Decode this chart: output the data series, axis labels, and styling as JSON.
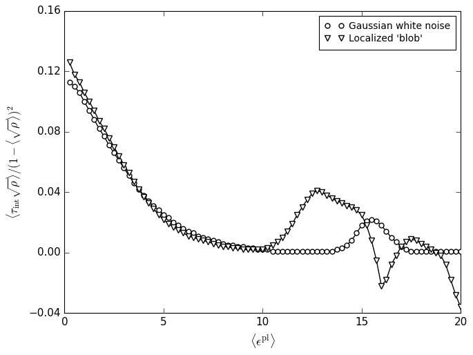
{
  "xlabel": "$\\langle \\epsilon^{\\mathrm{pl}} \\rangle$",
  "ylabel": "$\\langle \\tau_{\\mathrm{int}} \\sqrt{\\rho} \\rangle / (1 - \\langle \\sqrt{\\rho} \\rangle)^2$",
  "xlim": [
    0,
    20
  ],
  "ylim": [
    -0.04,
    0.16
  ],
  "xticks": [
    0,
    5,
    10,
    15,
    20
  ],
  "yticks": [
    -0.04,
    0.0,
    0.04,
    0.08,
    0.12,
    0.16
  ],
  "legend_labels": [
    "Gaussian white noise",
    "Localized 'blob'"
  ],
  "marker_size_circle": 5,
  "marker_size_triangle": 6,
  "gaussian_x": [
    0.25,
    0.5,
    0.75,
    1.0,
    1.25,
    1.5,
    1.75,
    2.0,
    2.25,
    2.5,
    2.75,
    3.0,
    3.25,
    3.5,
    3.75,
    4.0,
    4.25,
    4.5,
    4.75,
    5.0,
    5.25,
    5.5,
    5.75,
    6.0,
    6.25,
    6.5,
    6.75,
    7.0,
    7.25,
    7.5,
    7.75,
    8.0,
    8.25,
    8.5,
    8.75,
    9.0,
    9.25,
    9.5,
    9.75,
    10.0,
    10.25,
    10.5,
    10.75,
    11.0,
    11.25,
    11.5,
    11.75,
    12.0,
    12.25,
    12.5,
    12.75,
    13.0,
    13.25,
    13.5,
    13.75,
    14.0,
    14.25,
    14.5,
    14.75,
    15.0,
    15.25,
    15.5,
    15.75,
    16.0,
    16.25,
    16.5,
    16.75,
    17.0,
    17.25,
    17.5,
    17.75,
    18.0,
    18.25,
    18.5,
    18.75,
    19.0,
    19.25,
    19.5,
    19.75,
    20.0
  ],
  "gaussian_y": [
    0.113,
    0.11,
    0.106,
    0.1,
    0.094,
    0.088,
    0.082,
    0.077,
    0.071,
    0.066,
    0.061,
    0.056,
    0.051,
    0.046,
    0.042,
    0.038,
    0.034,
    0.031,
    0.028,
    0.025,
    0.023,
    0.02,
    0.018,
    0.016,
    0.014,
    0.013,
    0.011,
    0.01,
    0.009,
    0.008,
    0.007,
    0.006,
    0.005,
    0.005,
    0.004,
    0.004,
    0.003,
    0.003,
    0.002,
    0.002,
    0.002,
    0.001,
    0.001,
    0.001,
    0.001,
    0.001,
    0.001,
    0.001,
    0.001,
    0.001,
    0.001,
    0.001,
    0.001,
    0.001,
    0.002,
    0.003,
    0.005,
    0.008,
    0.013,
    0.018,
    0.021,
    0.022,
    0.021,
    0.018,
    0.014,
    0.01,
    0.007,
    0.004,
    0.002,
    0.001,
    0.001,
    0.001,
    0.001,
    0.001,
    0.001,
    0.001,
    0.001,
    0.001,
    0.001,
    0.001
  ],
  "blob_x": [
    0.25,
    0.5,
    0.75,
    1.0,
    1.25,
    1.5,
    1.75,
    2.0,
    2.25,
    2.5,
    2.75,
    3.0,
    3.25,
    3.5,
    3.75,
    4.0,
    4.25,
    4.5,
    4.75,
    5.0,
    5.25,
    5.5,
    5.75,
    6.0,
    6.25,
    6.5,
    6.75,
    7.0,
    7.25,
    7.5,
    7.75,
    8.0,
    8.25,
    8.5,
    8.75,
    9.0,
    9.25,
    9.5,
    9.75,
    10.0,
    10.25,
    10.5,
    10.75,
    11.0,
    11.25,
    11.5,
    11.75,
    12.0,
    12.25,
    12.5,
    12.75,
    13.0,
    13.25,
    13.5,
    13.75,
    14.0,
    14.25,
    14.5,
    14.75,
    15.0,
    15.25,
    15.5,
    15.75,
    16.0,
    16.25,
    16.5,
    16.75,
    17.0,
    17.25,
    17.5,
    17.75,
    18.0,
    18.25,
    18.5,
    18.75,
    19.0,
    19.25,
    19.5,
    19.75,
    20.0
  ],
  "blob_y": [
    0.126,
    0.118,
    0.113,
    0.106,
    0.1,
    0.094,
    0.087,
    0.082,
    0.076,
    0.07,
    0.064,
    0.058,
    0.053,
    0.047,
    0.042,
    0.037,
    0.033,
    0.029,
    0.025,
    0.022,
    0.019,
    0.017,
    0.015,
    0.013,
    0.011,
    0.01,
    0.009,
    0.008,
    0.007,
    0.006,
    0.005,
    0.004,
    0.004,
    0.003,
    0.003,
    0.002,
    0.002,
    0.002,
    0.002,
    0.002,
    0.003,
    0.005,
    0.007,
    0.01,
    0.014,
    0.019,
    0.025,
    0.03,
    0.035,
    0.039,
    0.041,
    0.04,
    0.038,
    0.036,
    0.034,
    0.033,
    0.031,
    0.03,
    0.028,
    0.025,
    0.018,
    0.008,
    -0.005,
    -0.022,
    -0.018,
    -0.008,
    -0.002,
    0.004,
    0.007,
    0.009,
    0.008,
    0.006,
    0.004,
    0.002,
    0.0,
    -0.002,
    -0.008,
    -0.018,
    -0.028,
    -0.036
  ]
}
